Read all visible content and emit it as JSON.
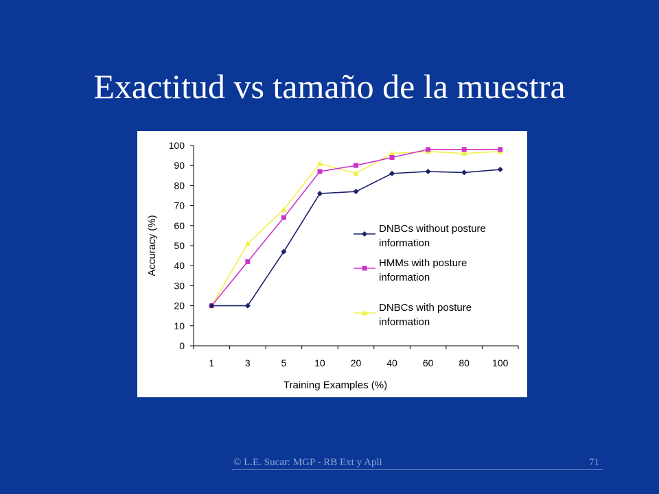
{
  "slide": {
    "title": "Exactitud vs tamaño de la muestra",
    "footer": "© L.E. Sucar: MGP - RB Ext y Apli",
    "page_number": "71",
    "background": "#0b3797"
  },
  "chart_data": {
    "type": "line",
    "title": "",
    "xlabel": "Training Examples (%)",
    "ylabel": "Accuracy (%)",
    "categories": [
      "1",
      "3",
      "5",
      "10",
      "20",
      "40",
      "60",
      "80",
      "100"
    ],
    "ylim": [
      0,
      100
    ],
    "yticks": [
      0,
      10,
      20,
      30,
      40,
      50,
      60,
      70,
      80,
      90,
      100
    ],
    "grid": false,
    "legend_position": "right",
    "series": [
      {
        "name": "DNBCs without posture information",
        "legend_lines": [
          "DNBCs without posture",
          "information"
        ],
        "color": "#1b1f6a",
        "marker": "diamond",
        "values": [
          20,
          20,
          47,
          76,
          77,
          86,
          87,
          86.5,
          88
        ]
      },
      {
        "name": "HMMs with posture information",
        "legend_lines": [
          "HMMs with posture",
          "information"
        ],
        "color": "#cc33cc",
        "marker": "square",
        "values": [
          20,
          42,
          64,
          87,
          90,
          94,
          98,
          98,
          98
        ]
      },
      {
        "name": "DNBCs with posture information",
        "legend_lines": [
          "DNBCs with posture",
          "information"
        ],
        "color": "#f2f04a",
        "marker": "triangle",
        "values": [
          20,
          51,
          68,
          91,
          86,
          96,
          97,
          96,
          97
        ]
      }
    ]
  }
}
